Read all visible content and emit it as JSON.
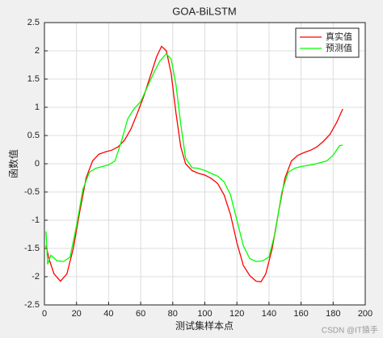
{
  "chart_data": {
    "type": "line",
    "title": "GOA-BiLSTM",
    "x_label": "测试集样本点",
    "y_label": "函数值",
    "watermark": "CSDN @IT猿手",
    "xlim": [
      0,
      200
    ],
    "xticks": [
      0,
      20,
      40,
      60,
      80,
      100,
      120,
      140,
      160,
      180,
      200
    ],
    "ylim": [
      -2.5,
      2.5
    ],
    "yticks": [
      -2.5,
      -2,
      -1.5,
      -1,
      -0.5,
      0,
      0.5,
      1,
      1.5,
      2,
      2.5
    ],
    "grid": true,
    "legend": "top-right",
    "series": [
      {
        "name": "真实值",
        "color": "#ff0000",
        "x": [
          1,
          3,
          6,
          10,
          14,
          18,
          22,
          26,
          30,
          34,
          38,
          42,
          46,
          50,
          54,
          58,
          62,
          66,
          70,
          73,
          76,
          79,
          82,
          85,
          88,
          92,
          96,
          100,
          104,
          108,
          112,
          116,
          120,
          124,
          128,
          132,
          135,
          138,
          142,
          146,
          150,
          154,
          158,
          162,
          166,
          170,
          174,
          178,
          182,
          186
        ],
        "values": [
          -1.45,
          -1.7,
          -1.95,
          -2.08,
          -1.95,
          -1.5,
          -0.85,
          -0.25,
          0.05,
          0.17,
          0.21,
          0.24,
          0.3,
          0.42,
          0.62,
          0.9,
          1.2,
          1.55,
          1.9,
          2.08,
          2.0,
          1.6,
          0.9,
          0.3,
          0.0,
          -0.12,
          -0.17,
          -0.2,
          -0.26,
          -0.35,
          -0.55,
          -0.9,
          -1.4,
          -1.8,
          -1.98,
          -2.08,
          -2.09,
          -1.95,
          -1.5,
          -0.85,
          -0.25,
          0.05,
          0.15,
          0.2,
          0.24,
          0.3,
          0.4,
          0.52,
          0.72,
          0.97
        ]
      },
      {
        "name": "预测值",
        "color": "#00ff00",
        "x": [
          1,
          2,
          4,
          8,
          12,
          16,
          20,
          24,
          28,
          32,
          36,
          40,
          44,
          48,
          52,
          56,
          60,
          64,
          68,
          72,
          76,
          79,
          82,
          85,
          88,
          92,
          96,
          100,
          104,
          108,
          112,
          116,
          120,
          124,
          128,
          132,
          136,
          140,
          144,
          148,
          152,
          156,
          160,
          164,
          168,
          172,
          176,
          180,
          184,
          186
        ],
        "values": [
          -1.2,
          -1.78,
          -1.62,
          -1.72,
          -1.73,
          -1.65,
          -1.1,
          -0.45,
          -0.15,
          -0.08,
          -0.05,
          -0.02,
          0.05,
          0.4,
          0.8,
          0.98,
          1.1,
          1.35,
          1.6,
          1.82,
          1.95,
          1.85,
          1.4,
          0.7,
          0.1,
          -0.07,
          -0.08,
          -0.12,
          -0.17,
          -0.22,
          -0.32,
          -0.55,
          -1.0,
          -1.45,
          -1.68,
          -1.73,
          -1.72,
          -1.65,
          -1.2,
          -0.5,
          -0.15,
          -0.08,
          -0.05,
          -0.03,
          -0.01,
          0.02,
          0.05,
          0.15,
          0.32,
          0.33
        ]
      }
    ]
  }
}
